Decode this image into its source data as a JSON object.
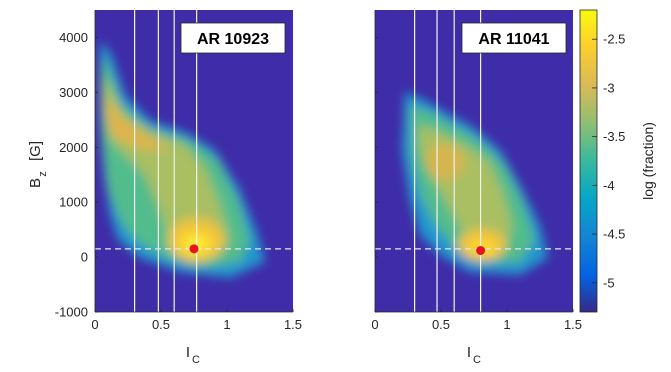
{
  "chart_data": [
    {
      "type": "heatmap",
      "title": "AR 10923",
      "xlabel": "I",
      "xlabel_sub": "C",
      "ylabel": "B",
      "ylabel_sub": "z",
      "ylabel_unit": "[G]",
      "xlim": [
        0,
        1.5
      ],
      "ylim": [
        -1000,
        4500
      ],
      "x_ticks": [
        0,
        0.5,
        1,
        1.5
      ],
      "x_tick_labels": [
        "0",
        "0.5",
        "1",
        "1.5"
      ],
      "y_ticks": [
        -1000,
        0,
        1000,
        2000,
        3000,
        4000
      ],
      "y_tick_labels": [
        "-1000",
        "0",
        "1000",
        "2000",
        "3000",
        "4000"
      ],
      "vertical_lines_x": [
        0.3,
        0.48,
        0.6,
        0.77
      ],
      "horizontal_dashed_line_y": 150,
      "marker": {
        "x": 0.75,
        "y": 150,
        "color": "#e8141c"
      },
      "background_color": "#3f2ca8",
      "distribution_ridge": [
        {
          "x": 0.08,
          "y": 3000
        },
        {
          "x": 0.15,
          "y": 2450
        },
        {
          "x": 0.25,
          "y": 2100
        },
        {
          "x": 0.35,
          "y": 1900
        },
        {
          "x": 0.45,
          "y": 1720
        },
        {
          "x": 0.55,
          "y": 1400
        },
        {
          "x": 0.65,
          "y": 900
        },
        {
          "x": 0.72,
          "y": 500
        },
        {
          "x": 0.77,
          "y": 200
        },
        {
          "x": 0.85,
          "y": 120
        },
        {
          "x": 1.0,
          "y": 60
        },
        {
          "x": 1.15,
          "y": 20
        }
      ]
    },
    {
      "type": "heatmap",
      "title": "AR 11041",
      "xlabel": "I",
      "xlabel_sub": "C",
      "xlim": [
        0,
        1.5
      ],
      "ylim": [
        -1000,
        4500
      ],
      "x_ticks": [
        0,
        0.5,
        1,
        1.5
      ],
      "x_tick_labels": [
        "0",
        "0.5",
        "1",
        "1.5"
      ],
      "vertical_lines_x": [
        0.3,
        0.47,
        0.6,
        0.8
      ],
      "horizontal_dashed_line_y": 150,
      "marker": {
        "x": 0.8,
        "y": 120,
        "color": "#e8141c"
      },
      "background_color": "#3f2ca8",
      "distribution_ridge": [
        {
          "x": 0.25,
          "y": 2100
        },
        {
          "x": 0.35,
          "y": 1800
        },
        {
          "x": 0.45,
          "y": 1700
        },
        {
          "x": 0.55,
          "y": 1500
        },
        {
          "x": 0.65,
          "y": 1200
        },
        {
          "x": 0.72,
          "y": 800
        },
        {
          "x": 0.78,
          "y": 400
        },
        {
          "x": 0.85,
          "y": 200
        },
        {
          "x": 1.0,
          "y": 150
        },
        {
          "x": 1.15,
          "y": 100
        }
      ]
    }
  ],
  "colorbar": {
    "label": "log (fraction)",
    "range": [
      -5.3,
      -2.2
    ],
    "ticks": [
      -2.5,
      -3,
      -3.5,
      -4,
      -4.5,
      -5
    ],
    "tick_labels": [
      "-2.5",
      "-3",
      "-3.5",
      "-4",
      "-4.5",
      "-5"
    ],
    "colormap": "parula",
    "colors": [
      "#352a87",
      "#0363e1",
      "#1485d4",
      "#06a7c6",
      "#38b99e",
      "#92bf73",
      "#d9ba56",
      "#fcce2e",
      "#f9fb0e"
    ]
  }
}
